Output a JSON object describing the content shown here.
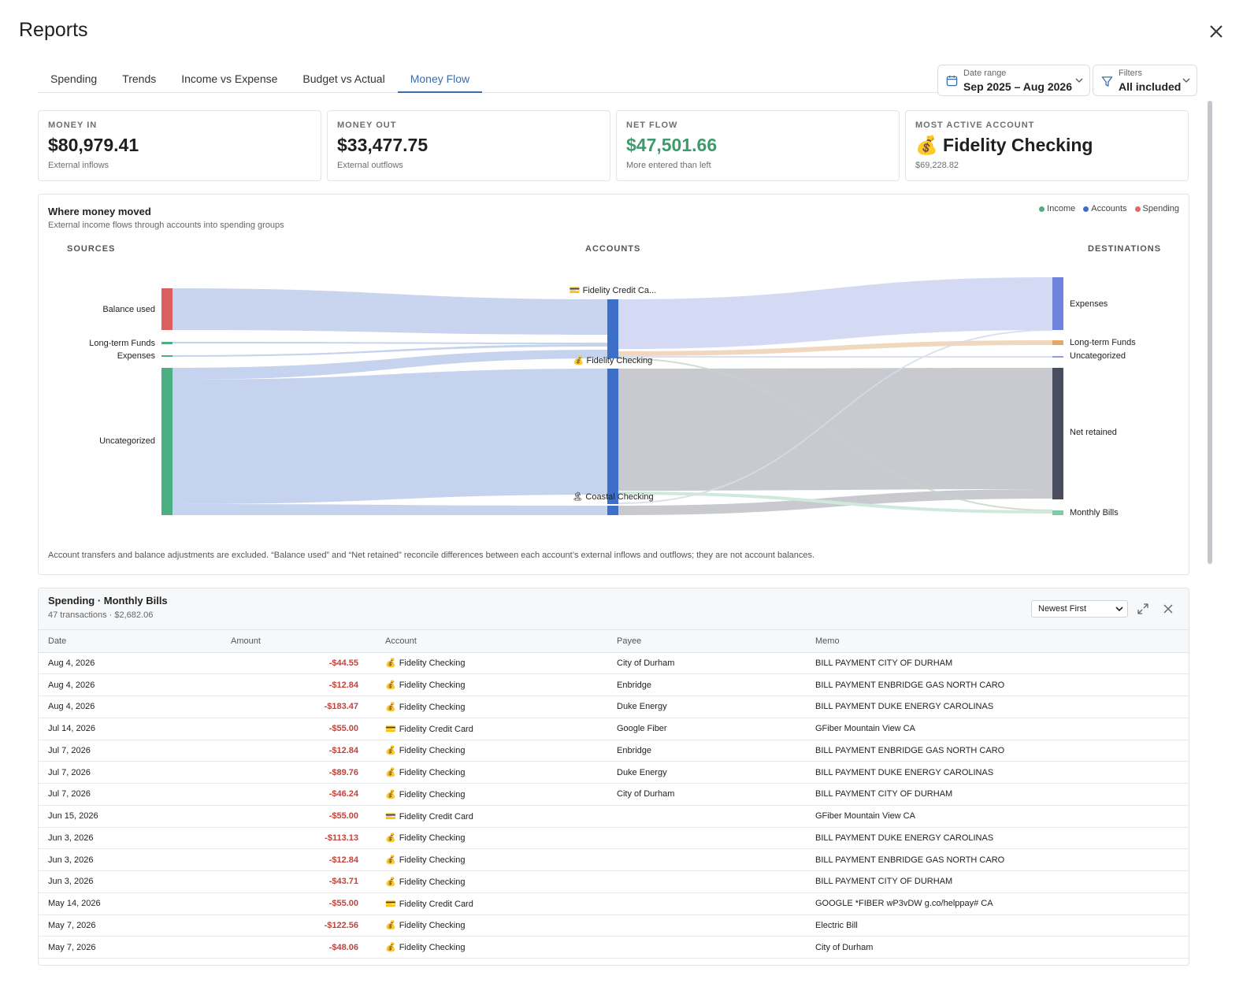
{
  "window": {
    "title": "Reports"
  },
  "tabs": [
    {
      "label": "Spending",
      "active": false
    },
    {
      "label": "Trends",
      "active": false
    },
    {
      "label": "Income vs Expense",
      "active": false
    },
    {
      "label": "Budget vs Actual",
      "active": false
    },
    {
      "label": "Money Flow",
      "active": true
    }
  ],
  "date_range": {
    "label": "Date range",
    "value": "Sep 2025 – Aug 2026"
  },
  "filters": {
    "label": "Filters",
    "value": "All included"
  },
  "cards": [
    {
      "key": "MONEY IN",
      "value": "$80,979.41",
      "sub": "External inflows"
    },
    {
      "key": "MONEY OUT",
      "value": "$33,477.75",
      "sub": "External outflows"
    },
    {
      "key": "NET FLOW",
      "value": "$47,501.66",
      "sub": "More entered than left"
    },
    {
      "key": "MOST ACTIVE ACCOUNT",
      "value": "💰 Fidelity Checking",
      "sub": "$69,228.82"
    }
  ],
  "flow_panel": {
    "title": "Where money moved",
    "subtitle": "External income flows through accounts into spending groups",
    "legend": [
      {
        "label": "Income",
        "color": "#4caf82"
      },
      {
        "label": "Accounts",
        "color": "#3d6fc8"
      },
      {
        "label": "Spending",
        "color": "#e06a6a"
      }
    ],
    "columns": {
      "sources": "SOURCES",
      "accounts": "ACCOUNTS",
      "destinations": "DESTINATIONS"
    },
    "sources": [
      {
        "label": "Balance used",
        "color": "#d9605f"
      },
      {
        "label": "Long-term Funds",
        "color": "#4caf82"
      },
      {
        "label": "Expenses",
        "color": "#4caf82"
      },
      {
        "label": "Uncategorized",
        "color": "#4caf82"
      }
    ],
    "accounts": [
      {
        "label": "💳 Fidelity Credit Ca...",
        "color": "#3d6fc8"
      },
      {
        "label": "💰 Fidelity Checking",
        "color": "#3d6fc8"
      },
      {
        "label": "🏝 Coastal Checking",
        "color": "#3d6fc8"
      }
    ],
    "destinations": [
      {
        "label": "Expenses",
        "color": "#6f82de"
      },
      {
        "label": "Long-term Funds",
        "color": "#e0a96b"
      },
      {
        "label": "Uncategorized",
        "color": "#8f9be0"
      },
      {
        "label": "Net retained",
        "color": "#4a4d5e"
      },
      {
        "label": "Monthly Bills",
        "color": "#7fcaa3"
      }
    ],
    "footnote": "Account transfers and balance adjustments are excluded. “Balance used” and “Net retained” reconcile differences between each account’s external inflows and outflows; they are not account balances."
  },
  "transactions": {
    "title": "Spending · Monthly Bills",
    "summary": "47 transactions · $2,682.06",
    "sort": {
      "value": "Newest First"
    },
    "columns": [
      "Date",
      "Amount",
      "Account",
      "Payee",
      "Memo"
    ],
    "rows": [
      {
        "date": "Aug 4, 2026",
        "amount": "-$44.55",
        "icon": "💰",
        "account": "Fidelity Checking",
        "payee": "City of Durham",
        "memo": "BILL PAYMENT CITY OF DURHAM"
      },
      {
        "date": "Aug 4, 2026",
        "amount": "-$12.84",
        "icon": "💰",
        "account": "Fidelity Checking",
        "payee": "Enbridge",
        "memo": "BILL PAYMENT ENBRIDGE GAS NORTH CARO"
      },
      {
        "date": "Aug 4, 2026",
        "amount": "-$183.47",
        "icon": "💰",
        "account": "Fidelity Checking",
        "payee": "Duke Energy",
        "memo": "BILL PAYMENT DUKE ENERGY CAROLINAS"
      },
      {
        "date": "Jul 14, 2026",
        "amount": "-$55.00",
        "icon": "💳",
        "account": "Fidelity Credit Card",
        "payee": "Google Fiber",
        "memo": "GFiber Mountain View CA"
      },
      {
        "date": "Jul 7, 2026",
        "amount": "-$12.84",
        "icon": "💰",
        "account": "Fidelity Checking",
        "payee": "Enbridge",
        "memo": "BILL PAYMENT ENBRIDGE GAS NORTH CARO"
      },
      {
        "date": "Jul 7, 2026",
        "amount": "-$89.76",
        "icon": "💰",
        "account": "Fidelity Checking",
        "payee": "Duke Energy",
        "memo": "BILL PAYMENT DUKE ENERGY CAROLINAS"
      },
      {
        "date": "Jul 7, 2026",
        "amount": "-$46.24",
        "icon": "💰",
        "account": "Fidelity Checking",
        "payee": "City of Durham",
        "memo": "BILL PAYMENT CITY OF DURHAM"
      },
      {
        "date": "Jun 15, 2026",
        "amount": "-$55.00",
        "icon": "💳",
        "account": "Fidelity Credit Card",
        "payee": "",
        "memo": "GFiber Mountain View CA"
      },
      {
        "date": "Jun 3, 2026",
        "amount": "-$113.13",
        "icon": "💰",
        "account": "Fidelity Checking",
        "payee": "",
        "memo": "BILL PAYMENT DUKE ENERGY CAROLINAS"
      },
      {
        "date": "Jun 3, 2026",
        "amount": "-$12.84",
        "icon": "💰",
        "account": "Fidelity Checking",
        "payee": "",
        "memo": "BILL PAYMENT ENBRIDGE GAS NORTH CARO"
      },
      {
        "date": "Jun 3, 2026",
        "amount": "-$43.71",
        "icon": "💰",
        "account": "Fidelity Checking",
        "payee": "",
        "memo": "BILL PAYMENT CITY OF DURHAM"
      },
      {
        "date": "May 14, 2026",
        "amount": "-$55.00",
        "icon": "💳",
        "account": "Fidelity Credit Card",
        "payee": "",
        "memo": "GOOGLE *FIBER wP3vDW g.co/helppay# CA"
      },
      {
        "date": "May 7, 2026",
        "amount": "-$122.56",
        "icon": "💰",
        "account": "Fidelity Checking",
        "payee": "",
        "memo": "Electric Bill"
      },
      {
        "date": "May 7, 2026",
        "amount": "-$48.06",
        "icon": "💰",
        "account": "Fidelity Checking",
        "payee": "",
        "memo": "City of Durham"
      }
    ]
  }
}
